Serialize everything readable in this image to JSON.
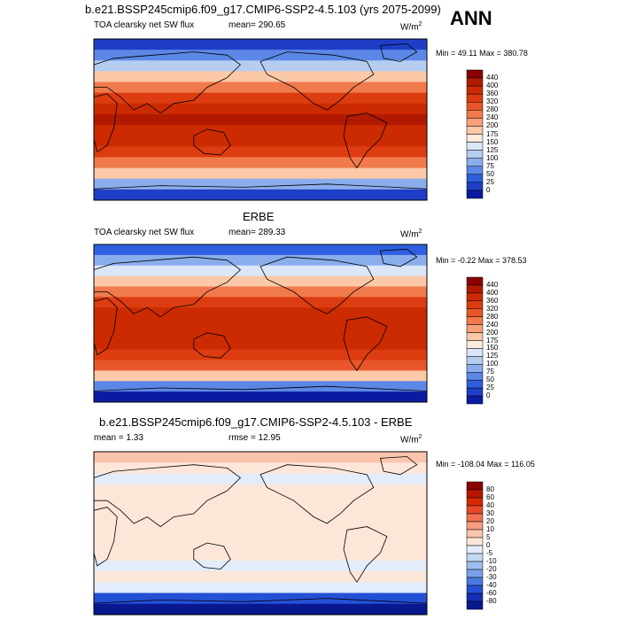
{
  "season": "ANN",
  "chart_data": [
    {
      "type": "heatmap",
      "title": "b.e21.BSSP245cmip6.f09_g17.CMIP6-SSP2-4.5.103 (yrs 2075-2099)",
      "left_label": "TOA clearsky net SW flux",
      "mean_label": "mean= 290.65",
      "units": "W/m",
      "units_sup": "2",
      "minmax": "Min =  49.11 Max = 380.78",
      "min": 49.11,
      "max": 380.78,
      "mean": 290.65,
      "colorbar_levels": [
        "440",
        "400",
        "360",
        "320",
        "280",
        "240",
        "200",
        "175",
        "150",
        "125",
        "100",
        "75",
        "50",
        "25",
        "0"
      ],
      "colorbar_colors": [
        "#8b0000",
        "#b11a00",
        "#cc2a00",
        "#dd3c10",
        "#e8562a",
        "#f07a4c",
        "#f7a07a",
        "#fbc8a8",
        "#fdebdc",
        "#dbe6f8",
        "#b6cdf2",
        "#8aadec",
        "#5b88e6",
        "#2f5fe0",
        "#1e3ec8",
        "#0b1aa0"
      ]
    },
    {
      "type": "heatmap",
      "title": "ERBE",
      "left_label": "TOA clearsky net SW flux",
      "mean_label": "mean= 289.33",
      "units": "W/m",
      "units_sup": "2",
      "minmax": "Min =  -0.22 Max = 378.53",
      "min": -0.22,
      "max": 378.53,
      "mean": 289.33,
      "colorbar_levels": [
        "440",
        "400",
        "360",
        "320",
        "280",
        "240",
        "200",
        "175",
        "150",
        "125",
        "100",
        "75",
        "50",
        "25",
        "0"
      ],
      "colorbar_colors": [
        "#8b0000",
        "#b11a00",
        "#cc2a00",
        "#dd3c10",
        "#e8562a",
        "#f07a4c",
        "#f7a07a",
        "#fbc8a8",
        "#fdebdc",
        "#dbe6f8",
        "#b6cdf2",
        "#8aadec",
        "#5b88e6",
        "#2f5fe0",
        "#1e3ec8",
        "#0b1aa0"
      ]
    },
    {
      "type": "heatmap",
      "title": "b.e21.BSSP245cmip6.f09_g17.CMIP6-SSP2-4.5.103 - ERBE",
      "left_label": "mean =   1.33",
      "mean_label": "rmse =  12.95",
      "units": "W/m",
      "units_sup": "2",
      "minmax": "Min = -108.04 Max = 116.05",
      "min": -108.04,
      "max": 116.05,
      "mean": 1.33,
      "rmse": 12.95,
      "colorbar_levels": [
        "80",
        "60",
        "40",
        "30",
        "20",
        "10",
        "5",
        "0",
        "-5",
        "-10",
        "-20",
        "-30",
        "-40",
        "-60",
        "-80"
      ],
      "colorbar_colors": [
        "#8b0000",
        "#b81500",
        "#d42a00",
        "#e8482a",
        "#f27050",
        "#f89c80",
        "#fbc4ac",
        "#fde6d8",
        "#e2ecfa",
        "#c4d8f4",
        "#9fbef0",
        "#7aa0ea",
        "#4c78e2",
        "#2450d6",
        "#1430b4",
        "#0a1890"
      ]
    }
  ]
}
